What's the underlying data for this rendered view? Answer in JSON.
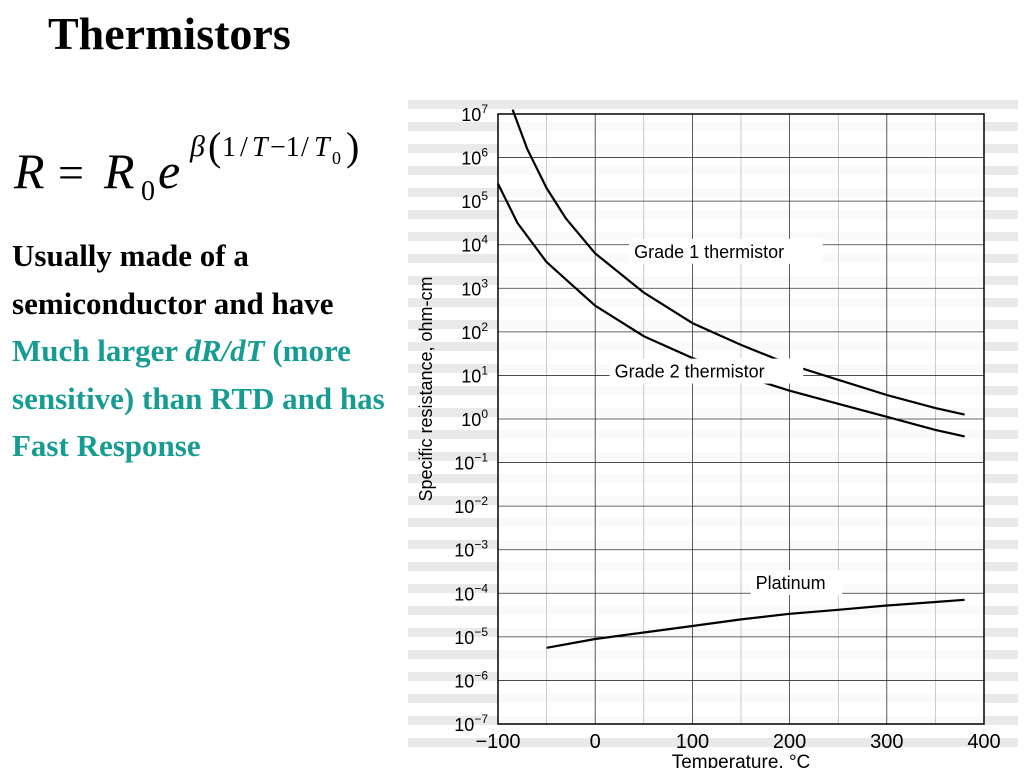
{
  "slide": {
    "title": "Thermistors",
    "body_parts": [
      {
        "text": "Usually made of a semiconductor and have ",
        "style": "plain"
      },
      {
        "text": "Much larger",
        "style": "teal"
      },
      {
        "text": " ",
        "style": "plain"
      },
      {
        "text": "dR/dT",
        "style": "teal-italic"
      },
      {
        "text": " (more sensitive) than RTD and has Fast Response",
        "style": "teal"
      }
    ],
    "colors": {
      "accent": "#179c94",
      "text": "#000000"
    }
  },
  "chart_data": {
    "type": "line",
    "xlabel": "Temperature, °C",
    "ylabel": "Specific resistance, ohm-cm",
    "xlim": [
      -100,
      400
    ],
    "ylim_log10": [
      -7,
      7
    ],
    "y_scale": "log",
    "grid": true,
    "x_ticks": [
      "−100",
      "0",
      "100",
      "200",
      "300",
      "400"
    ],
    "y_tick_exponents": [
      "7",
      "6",
      "5",
      "4",
      "3",
      "2",
      "1",
      "0",
      "−1",
      "−2",
      "−3",
      "−4",
      "−5",
      "−6",
      "−7"
    ],
    "series": [
      {
        "name": "Grade 1 thermistor",
        "x": [
          -85,
          -70,
          -50,
          -30,
          0,
          50,
          100,
          150,
          200,
          250,
          300,
          350,
          380
        ],
        "log10_y": [
          7.1,
          6.2,
          5.3,
          4.6,
          3.8,
          2.9,
          2.2,
          1.7,
          1.25,
          0.9,
          0.55,
          0.25,
          0.1
        ]
      },
      {
        "name": "Grade 2 thermistor",
        "x": [
          -100,
          -80,
          -50,
          -25,
          0,
          50,
          100,
          150,
          200,
          250,
          300,
          350,
          380
        ],
        "log10_y": [
          5.4,
          4.5,
          3.6,
          3.1,
          2.6,
          1.9,
          1.4,
          1.0,
          0.65,
          0.35,
          0.05,
          -0.25,
          -0.4
        ]
      },
      {
        "name": "Platinum",
        "x": [
          -50,
          0,
          50,
          100,
          150,
          200,
          250,
          300,
          350,
          380
        ],
        "log10_y": [
          -5.25,
          -5.05,
          -4.9,
          -4.75,
          -4.6,
          -4.47,
          -4.38,
          -4.28,
          -4.2,
          -4.15
        ]
      }
    ]
  }
}
